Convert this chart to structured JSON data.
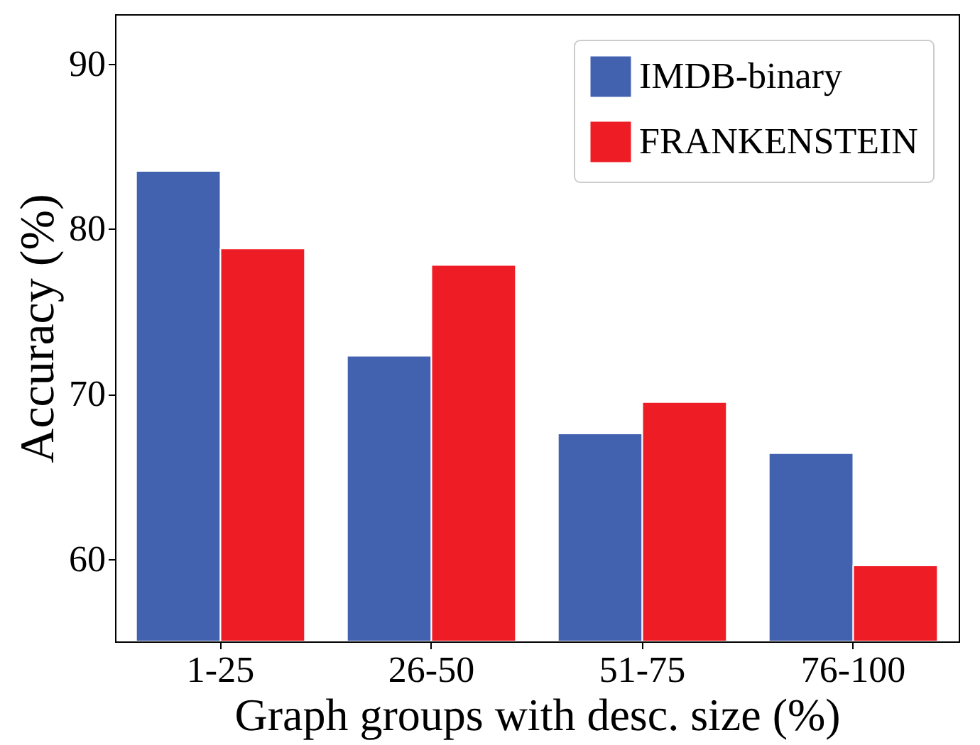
{
  "chart_data": {
    "type": "bar",
    "xlabel": "Graph groups with desc. size (%)",
    "ylabel": "Accuracy (%)",
    "categories": [
      "1-25",
      "26-50",
      "51-75",
      "76-100"
    ],
    "series": [
      {
        "name": "IMDB-binary",
        "color": "#4262b0",
        "values": [
          83.5,
          72.3,
          67.6,
          66.4
        ]
      },
      {
        "name": "FRANKENSTEIN",
        "color": "#ee1c25",
        "values": [
          78.8,
          77.8,
          69.5,
          59.6
        ]
      }
    ],
    "ylim": [
      55,
      93
    ],
    "yticks": [
      60,
      70,
      80,
      90
    ],
    "grid": false,
    "legend": "top right"
  }
}
